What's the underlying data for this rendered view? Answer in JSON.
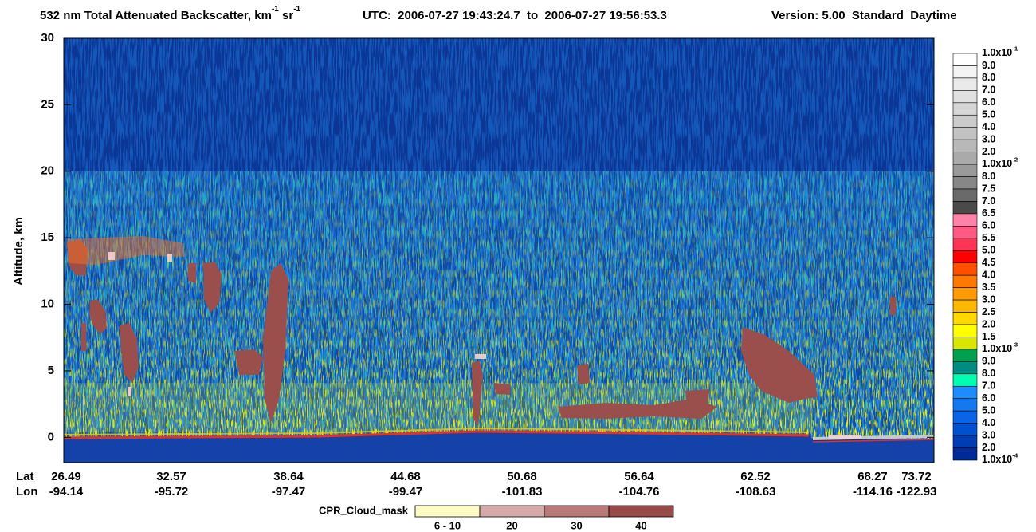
{
  "chart_data": {
    "type": "curtain",
    "title": [
      {
        "text": "532 nm Total Attenuated Backscatter, km",
        "sup": "-1"
      },
      {
        "text": " sr",
        "sup": "-1"
      }
    ],
    "subtitle": "UTC:  2006-07-27 19:43:24.7  to  2006-07-27 19:56:53.3",
    "version": "Version: 5.00  Standard  Daytime",
    "ylabel": "Altitude, km",
    "ylim": [
      -1.9,
      30
    ],
    "yticks": [
      0,
      5,
      10,
      15,
      20,
      25,
      30
    ],
    "x_rows": [
      {
        "name": "Lat",
        "labels": [
          "26.49",
          "32.57",
          "38.64",
          "44.68",
          "50.68",
          "56.64",
          "62.52",
          "68.27",
          "73.72"
        ]
      },
      {
        "name": "Lon",
        "labels": [
          "-94.14",
          "-95.72",
          "-97.47",
          "-99.47",
          "-101.83",
          "-104.76",
          "-108.63",
          "-114.16",
          "-122.93"
        ]
      }
    ],
    "colorbar": {
      "labels": [
        {
          "text": "1.0x10",
          "sup": "-1"
        },
        "9.0",
        "8.0",
        "7.0",
        "6.0",
        "5.0",
        "4.0",
        "3.0",
        "2.0",
        {
          "text": "1.0x10",
          "sup": "-2"
        },
        "8.0",
        "7.5",
        "7.0",
        "6.5",
        "6.0",
        "5.5",
        "5.0",
        "4.5",
        "4.0",
        "3.5",
        "3.0",
        "2.5",
        "2.0",
        "1.5",
        {
          "text": "1.0x10",
          "sup": "-3"
        },
        "9.0",
        "8.0",
        "7.0",
        "6.0",
        "5.0",
        "4.0",
        "3.0",
        "2.0",
        {
          "text": "1.0x10",
          "sup": "-4"
        }
      ],
      "colors": [
        "#ffffff",
        "#f4f4f4",
        "#eaeaea",
        "#e0e0e0",
        "#d6d6d6",
        "#cccccc",
        "#c2c2c2",
        "#b8b8b8",
        "#aaaaaa",
        "#9a9a9a",
        "#878787",
        "#6a6a6a",
        "#4a4a4a",
        "#ff82a8",
        "#ff5a84",
        "#ff3456",
        "#ff0000",
        "#ff5000",
        "#ff7800",
        "#ff9a00",
        "#ffb800",
        "#ffd800",
        "#ffff00",
        "#d8e600",
        "#00a050",
        "#008c82",
        "#00ffb0",
        "#1c8cff",
        "#1478f0",
        "#0a64e6",
        "#0050d2",
        "#003cb4",
        "#002a96"
      ]
    },
    "cloud_mask": {
      "title": "CPR_Cloud_mask",
      "labels": [
        "6 - 10",
        "20",
        "30",
        "40"
      ],
      "colors": [
        "#fefac4",
        "#d6aaa8",
        "#b87a78",
        "#984a48"
      ]
    }
  }
}
